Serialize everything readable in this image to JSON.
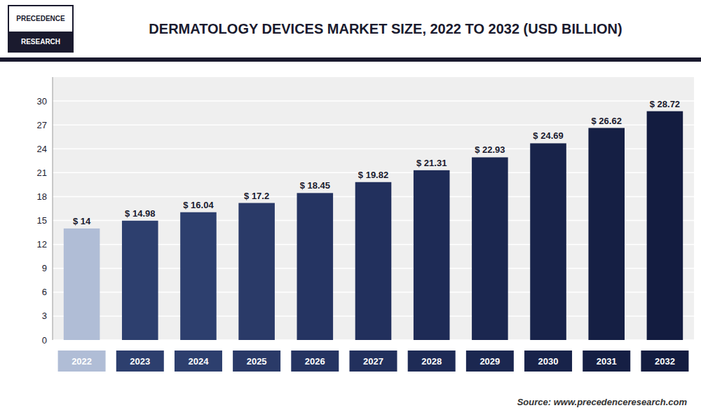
{
  "chart_data": {
    "type": "bar",
    "title": "DERMATOLOGY DEVICES MARKET SIZE, 2022 TO 2032 (USD BILLION)",
    "annotations": [
      "PRECEDENCE",
      "RESEARCH",
      "Source: www.precedenceresearch.com"
    ],
    "categories": [
      "2022",
      "2023",
      "2024",
      "2025",
      "2026",
      "2027",
      "2028",
      "2029",
      "2030",
      "2031",
      "2032"
    ],
    "values": [
      14.0,
      14.98,
      16.04,
      17.2,
      18.45,
      19.82,
      21.31,
      22.93,
      24.69,
      26.62,
      28.72
    ],
    "value_labels": [
      "$ 14",
      "$ 14.98",
      "$ 16.04",
      "$ 17.2",
      "$ 18.45",
      "$ 19.82",
      "$ 21.31",
      "$ 22.93",
      "$ 24.69",
      "$ 26.62",
      "$ 28.72"
    ],
    "colors": [
      "#b0bdd6",
      "#2d3f6e",
      "#2d3f6e",
      "#2a3a68",
      "#253462",
      "#22305d",
      "#1e2b56",
      "#1b2750",
      "#18234a",
      "#151f44",
      "#131c40"
    ],
    "ylim": [
      0,
      33
    ],
    "yticks": [
      0,
      3,
      6,
      9,
      12,
      15,
      18,
      21,
      24,
      27,
      30
    ],
    "grid": true,
    "data_labels": true
  }
}
